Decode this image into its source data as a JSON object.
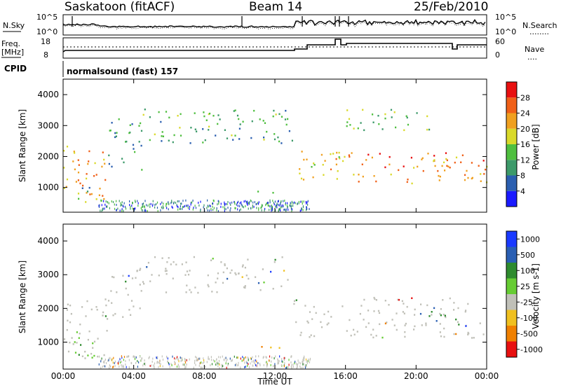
{
  "header": {
    "station": "Saskatoon (fitACF)",
    "beam": "Beam 14",
    "date": "25/Feb/2010"
  },
  "noise_panel": {
    "left_label": "N.Sky",
    "left_ticks": [
      "10^5",
      "10^0"
    ],
    "right_ticks": [
      "10^5",
      "10^0"
    ],
    "right_label": "N.Search",
    "right_legend_dash": "........"
  },
  "freq_panel": {
    "left_label_1": "Freq.",
    "left_label_2": "[MHz]",
    "left_ticks": [
      "18",
      "8"
    ],
    "right_ticks": [
      "60",
      "0"
    ],
    "right_label": "Nave",
    "right_legend_dash": "...."
  },
  "cpid_panel": {
    "label": "CPID",
    "value": "normalsound (fast) 157"
  },
  "colors": {
    "power_scale": [
      "#1a1aff",
      "#2b5fb0",
      "#3d9a6a",
      "#4fbf3f",
      "#d9d92a",
      "#f0a020",
      "#f06018",
      "#e81010"
    ],
    "velocity_scale": [
      "#1a3aff",
      "#2a5fb3",
      "#2e8b2e",
      "#66cc33",
      "#c0c0b8",
      "#f0c020",
      "#f08000",
      "#e81010"
    ],
    "scatter_grey": "#c4c4bc"
  },
  "chart_data": [
    {
      "type": "heatmap",
      "title": "",
      "xlabel": "",
      "ylabel": "Slant Range [km]",
      "x_ticks": [
        "00:00",
        "04:00",
        "08:00",
        "12:00",
        "16:00",
        "20:00",
        "00:00"
      ],
      "y_ticks": [
        "1000",
        "2000",
        "3000",
        "4000"
      ],
      "xlim": [
        0,
        24
      ],
      "ylim": [
        200,
        4500
      ],
      "colorbar": {
        "label": "Power [dB]",
        "ticks": [
          "4",
          "8",
          "12",
          "16",
          "20",
          "24",
          "28"
        ]
      },
      "echo_bands": [
        {
          "t": [
            0.0,
            2.5
          ],
          "r": [
            500,
            2300
          ],
          "dB": 22
        },
        {
          "t": [
            0.5,
            2.0
          ],
          "r": [
            500,
            1000
          ],
          "dB": 12
        },
        {
          "t": [
            2.5,
            4.5
          ],
          "r": [
            1500,
            3200
          ],
          "dB": 10
        },
        {
          "t": [
            4.5,
            13.0
          ],
          "r": [
            2400,
            3500
          ],
          "dB": 12
        },
        {
          "t": [
            10.5,
            12.5
          ],
          "r": [
            750,
            850
          ],
          "dB": 9
        },
        {
          "t": [
            13.0,
            16.0
          ],
          "r": [
            1200,
            2300
          ],
          "dB": 20
        },
        {
          "t": [
            16.0,
            24.0
          ],
          "r": [
            1100,
            2100
          ],
          "dB": 24
        },
        {
          "t": [
            16.0,
            21.0
          ],
          "r": [
            2800,
            3500
          ],
          "dB": 14
        }
      ]
    },
    {
      "type": "heatmap",
      "title": "",
      "xlabel": "Time UT",
      "ylabel": "Slant Range [km]",
      "x_ticks": [
        "00:00",
        "04:00",
        "08:00",
        "12:00",
        "16:00",
        "20:00",
        "00:00"
      ],
      "y_ticks": [
        "1000",
        "2000",
        "3000",
        "4000"
      ],
      "xlim": [
        0,
        24
      ],
      "ylim": [
        200,
        4500
      ],
      "colorbar": {
        "label": "Velocity [m s-1]",
        "ticks": [
          "1000",
          "500",
          "100",
          "25",
          "-25",
          "-100",
          "-500",
          "-1000"
        ]
      },
      "echo_bands": [
        {
          "t": [
            0.0,
            2.5
          ],
          "r": [
            400,
            2300
          ],
          "v": 0
        },
        {
          "t": [
            0.5,
            2.0
          ],
          "r": [
            500,
            1200
          ],
          "v": 150
        },
        {
          "t": [
            2.5,
            4.5
          ],
          "r": [
            1500,
            3200
          ],
          "v": 0
        },
        {
          "t": [
            4.5,
            13.0
          ],
          "r": [
            2400,
            3500
          ],
          "v": 0
        },
        {
          "t": [
            10.5,
            12.5
          ],
          "r": [
            700,
            850
          ],
          "v": -100
        },
        {
          "t": [
            13.0,
            24.0
          ],
          "r": [
            1100,
            2300
          ],
          "v": 0
        },
        {
          "t": [
            20.0,
            22.0
          ],
          "r": [
            1600,
            2000
          ],
          "v": 500
        }
      ]
    }
  ]
}
